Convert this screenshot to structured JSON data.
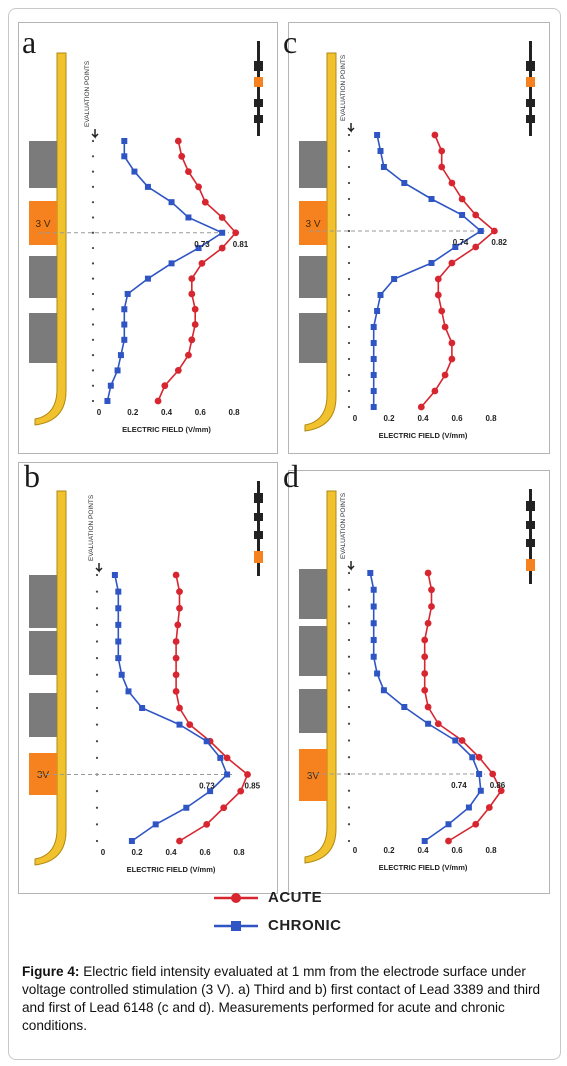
{
  "figure": {
    "caption_label": "Figure 4:",
    "caption_text": "Electric field intensity evaluated at 1 mm from the electrode surface under voltage controlled stimulation (3 V). a) Third and b) first contact of Lead 3389 and third and first of Lead 6148 (c and d). Measurements performed for acute and chronic conditions."
  },
  "legend": {
    "acute_label": "ACUTE",
    "chronic_label": "CHRONIC"
  },
  "colors": {
    "acute": "#d7262f",
    "chronic": "#2f55c4",
    "lead": "#f2c12e",
    "active_contact": "#f5821f",
    "contact": "#7b7b7b"
  },
  "chart_data": [
    {
      "panel": "a",
      "type": "line",
      "xlabel": "ELECTRIC FIELD (V/mm)",
      "ylabel": "EVALUATION POINTS",
      "xlim": [
        0,
        0.8
      ],
      "xticks": [
        "0",
        "0.2",
        "0.4",
        "0.6",
        "0.8"
      ],
      "contact_label": "3 V",
      "series": [
        {
          "name": "ACUTE",
          "values": [
            0.47,
            0.49,
            0.53,
            0.59,
            0.63,
            0.73,
            0.81,
            0.73,
            0.61,
            0.55,
            0.55,
            0.57,
            0.57,
            0.55,
            0.53,
            0.47,
            0.39,
            0.35
          ]
        },
        {
          "name": "CHRONIC",
          "values": [
            0.15,
            0.15,
            0.21,
            0.29,
            0.43,
            0.53,
            0.73,
            0.59,
            0.43,
            0.29,
            0.17,
            0.15,
            0.15,
            0.15,
            0.13,
            0.11,
            0.07,
            0.05
          ]
        }
      ],
      "annotations": {
        "acute_peak": "0.81",
        "chronic_peak": "0.73"
      }
    },
    {
      "panel": "b",
      "type": "line",
      "xlabel": "ELECTRIC FIELD (V/mm)",
      "ylabel": "EVALUATION POINTS",
      "xlim": [
        0,
        0.8
      ],
      "xticks": [
        "0",
        "0.2",
        "0.4",
        "0.6",
        "0.8"
      ],
      "contact_label": "3V",
      "series": [
        {
          "name": "ACUTE",
          "values": [
            0.43,
            0.45,
            0.45,
            0.44,
            0.43,
            0.43,
            0.43,
            0.43,
            0.45,
            0.51,
            0.63,
            0.73,
            0.85,
            0.81,
            0.71,
            0.61,
            0.45
          ]
        },
        {
          "name": "CHRONIC",
          "values": [
            0.07,
            0.09,
            0.09,
            0.09,
            0.09,
            0.09,
            0.11,
            0.15,
            0.23,
            0.45,
            0.61,
            0.69,
            0.73,
            0.63,
            0.49,
            0.31,
            0.17
          ]
        }
      ],
      "annotations": {
        "acute_peak": "0.85",
        "chronic_peak": "0.73"
      }
    },
    {
      "panel": "c",
      "type": "line",
      "xlabel": "ELECTRIC FIELD (V/mm)",
      "ylabel": "EVALUATION POINTS",
      "xlim": [
        0,
        0.8
      ],
      "xticks": [
        "0",
        "0.2",
        "0.4",
        "0.6",
        "0.8"
      ],
      "contact_label": "3 V",
      "series": [
        {
          "name": "ACUTE",
          "values": [
            0.47,
            0.51,
            0.51,
            0.57,
            0.63,
            0.71,
            0.82,
            0.71,
            0.57,
            0.49,
            0.49,
            0.51,
            0.53,
            0.57,
            0.57,
            0.53,
            0.47,
            0.39
          ]
        },
        {
          "name": "CHRONIC",
          "values": [
            0.13,
            0.15,
            0.17,
            0.29,
            0.45,
            0.63,
            0.74,
            0.59,
            0.45,
            0.23,
            0.15,
            0.13,
            0.11,
            0.11,
            0.11,
            0.11,
            0.11,
            0.11
          ]
        }
      ],
      "annotations": {
        "acute_peak": "0.82",
        "chronic_peak": "0.74"
      }
    },
    {
      "panel": "d",
      "type": "line",
      "xlabel": "ELECTRIC FIELD (V/mm)",
      "ylabel": "EVALUATION POINTS",
      "xlim": [
        0,
        0.8
      ],
      "xticks": [
        "0",
        "0.2",
        "0.4",
        "0.6",
        "0.8"
      ],
      "contact_label": "3V",
      "series": [
        {
          "name": "ACUTE",
          "values": [
            0.43,
            0.45,
            0.45,
            0.43,
            0.41,
            0.41,
            0.41,
            0.41,
            0.43,
            0.49,
            0.63,
            0.73,
            0.81,
            0.86,
            0.79,
            0.71,
            0.55
          ]
        },
        {
          "name": "CHRONIC",
          "values": [
            0.09,
            0.11,
            0.11,
            0.11,
            0.11,
            0.11,
            0.13,
            0.17,
            0.29,
            0.43,
            0.59,
            0.69,
            0.73,
            0.74,
            0.67,
            0.55,
            0.41
          ]
        }
      ],
      "annotations": {
        "acute_peak": "0.86",
        "chronic_peak": "0.74"
      }
    }
  ]
}
